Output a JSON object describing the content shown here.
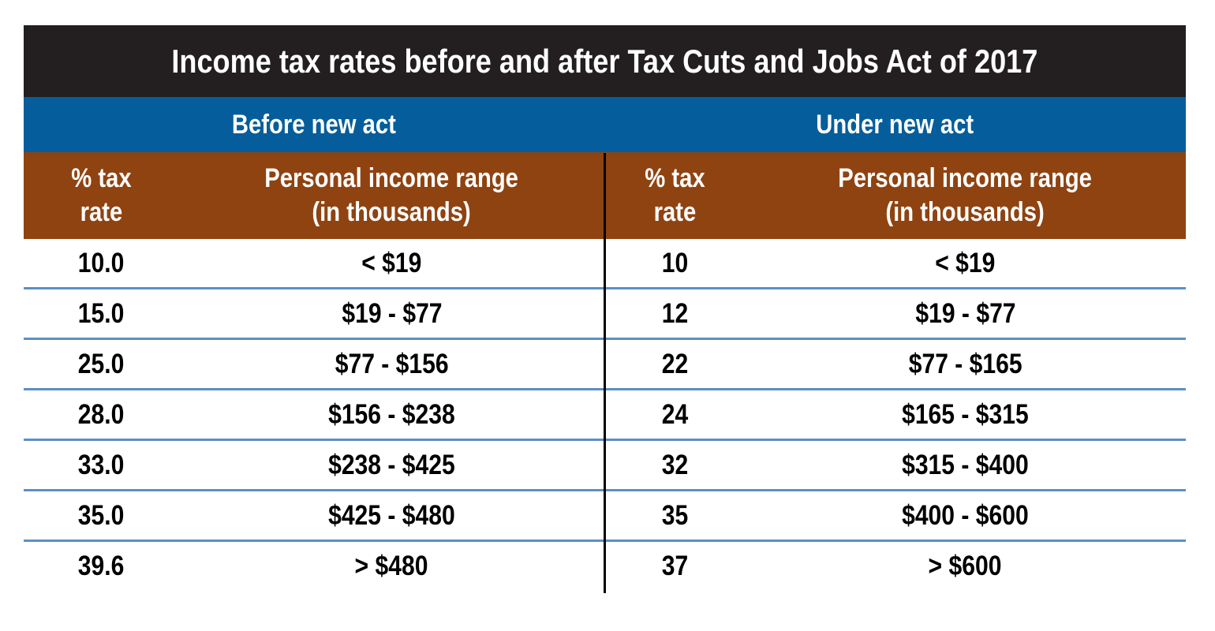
{
  "title": "Income tax rates before and after Tax Cuts and Jobs Act of 2017",
  "sections": {
    "before": "Before new act",
    "after": "Under new act"
  },
  "column_headers": {
    "rate": "% tax\nrate",
    "range": "Personal income range\n(in thousands)"
  },
  "rows": [
    {
      "before_rate": "10.0",
      "before_range": "< $19",
      "after_rate": "10",
      "after_range": "< $19"
    },
    {
      "before_rate": "15.0",
      "before_range": "$19 - $77",
      "after_rate": "12",
      "after_range": "$19 - $77"
    },
    {
      "before_rate": "25.0",
      "before_range": "$77 - $156",
      "after_rate": "22",
      "after_range": "$77 - $165"
    },
    {
      "before_rate": "28.0",
      "before_range": "$156 - $238",
      "after_rate": "24",
      "after_range": "$165 - $315"
    },
    {
      "before_rate": "33.0",
      "before_range": "$238 - $425",
      "after_rate": "32",
      "after_range": "$315 - $400"
    },
    {
      "before_rate": "35.0",
      "before_range": "$425 - $480",
      "after_rate": "35",
      "after_range": "$400 - $600"
    },
    {
      "before_rate": "39.6",
      "before_range": "> $480",
      "after_rate": "37",
      "after_range": "> $600"
    }
  ],
  "colors": {
    "title_bg": "#231f20",
    "section_bg": "#055e9b",
    "header_bg": "#8f4311",
    "row_rule": "#5b8fc6"
  }
}
